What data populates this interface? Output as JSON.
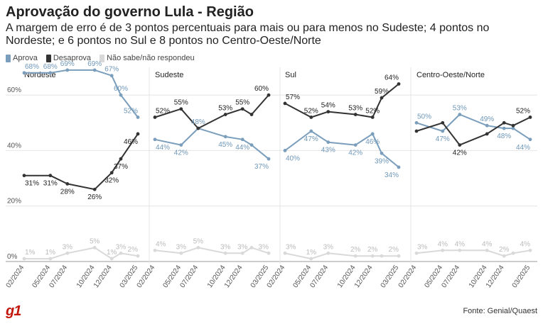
{
  "title": "Aprovação do governo Lula - Região",
  "subtitle": "A margem de erro é de 3 pontos percentuais para mais ou para menos no Sudeste; 4 pontos no Nordeste; e 6 pontos no Sul e 8 pontos no Centro-Oeste/Norte",
  "legend": [
    {
      "label": "Aprova",
      "color": "#7a9ebc"
    },
    {
      "label": "Desaprova",
      "color": "#333333"
    },
    {
      "label": "Não sabe/não respondeu",
      "color": "#d9d9d9"
    }
  ],
  "logo": "g1",
  "source": "Fonte: Genial/Quaest",
  "chart_data": {
    "type": "line",
    "ylim": [
      0,
      70
    ],
    "yticks": [
      "0%",
      "20%",
      "40%",
      "60%"
    ],
    "ytick_values": [
      0,
      20,
      40,
      60
    ],
    "x": [
      "02/2024",
      "05/2024",
      "07/2024",
      "10/2024",
      "12/2024",
      "01/2025",
      "03/2025"
    ],
    "xticks": [
      "02/2024",
      "05/2024",
      "07/2024",
      "10/2024",
      "12/2024",
      "03/2025"
    ],
    "grid": true,
    "panels": [
      {
        "name": "Nordeste",
        "series": [
          {
            "name": "Aprova",
            "values": [
              68,
              68,
              69,
              69,
              67,
              60,
              52
            ],
            "labels": [
              "68%",
              "68%",
              "69%",
              "69%",
              "67%",
              "60%",
              "52%"
            ]
          },
          {
            "name": "Desaprova",
            "values": [
              31,
              31,
              28,
              26,
              32,
              37,
              46
            ],
            "labels": [
              "31%",
              "31%",
              "28%",
              "26%",
              "32%",
              "37%",
              "46%"
            ]
          },
          {
            "name": "Não sabe/não respondeu",
            "values": [
              1,
              1,
              3,
              5,
              1,
              3,
              2
            ],
            "labels": [
              "1%",
              "1%",
              "3%",
              "5%",
              "1%",
              "3%",
              "2%"
            ]
          }
        ]
      },
      {
        "name": "Sudeste",
        "series": [
          {
            "name": "Aprova",
            "values": [
              44,
              42,
              48,
              45,
              44,
              42,
              37
            ],
            "labels": [
              "44%",
              "42%",
              "48%",
              "45%",
              "44%",
              "",
              "37%"
            ]
          },
          {
            "name": "Desaprova",
            "values": [
              52,
              55,
              48,
              53,
              55,
              53,
              60
            ],
            "labels": [
              "52%",
              "55%",
              "",
              "53%",
              "55%",
              "",
              "60%"
            ]
          },
          {
            "name": "Não sabe/não respondeu",
            "values": [
              4,
              3,
              5,
              3,
              3,
              5,
              3
            ],
            "labels": [
              "4%",
              "3%",
              "5%",
              "3%",
              "3%",
              "",
              "3%"
            ]
          }
        ]
      },
      {
        "name": "Sul",
        "series": [
          {
            "name": "Aprova",
            "values": [
              40,
              47,
              43,
              42,
              46,
              39,
              34
            ],
            "labels": [
              "40%",
              "47%",
              "43%",
              "42%",
              "46%",
              "39%",
              "34%"
            ]
          },
          {
            "name": "Desaprova",
            "values": [
              57,
              52,
              54,
              53,
              52,
              59,
              64
            ],
            "labels": [
              "57%",
              "52%",
              "54%",
              "53%",
              "52%",
              "59%",
              "64%"
            ]
          },
          {
            "name": "Não sabe/não respondeu",
            "values": [
              3,
              1,
              3,
              2,
              2,
              2,
              2
            ],
            "labels": [
              "3%",
              "1%",
              "3%",
              "2%",
              "2%",
              "",
              "2%"
            ]
          }
        ]
      },
      {
        "name": "Centro-Oeste/Norte",
        "series": [
          {
            "name": "Aprova",
            "values": [
              50,
              47,
              53,
              49,
              48,
              48,
              44
            ],
            "labels": [
              "50%",
              "47%",
              "53%",
              "49%",
              "48%",
              "",
              "44%"
            ]
          },
          {
            "name": "Desaprova",
            "values": [
              47,
              50,
              42,
              46,
              50,
              49,
              52
            ],
            "labels": [
              "",
              "",
              "42%",
              "",
              "",
              "",
              "52%"
            ]
          },
          {
            "name": "Não sabe/não respondeu",
            "values": [
              3,
              4,
              4,
              4,
              2,
              3,
              4
            ],
            "labels": [
              "3%",
              "4%",
              "4%",
              "4%",
              "2%",
              "",
              "4%"
            ]
          }
        ]
      }
    ]
  }
}
